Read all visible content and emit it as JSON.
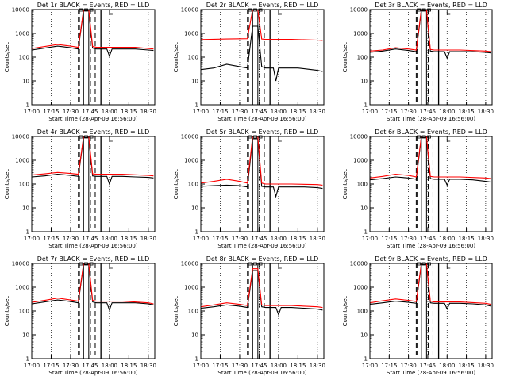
{
  "chart_data": [
    {
      "type": "line",
      "title": "Det 1r BLACK = Events, RED = LLD",
      "xlabel": "Start Time (28-Apr-09 16:56:00)",
      "ylabel": "Counts/sec",
      "ylog": true,
      "ylim": [
        1,
        10000
      ],
      "xlim": [
        "17:00",
        "18:35"
      ],
      "x_ticks": [
        "17:00",
        "17:15",
        "17:30",
        "17:45",
        "18:00",
        "18:15",
        "18:30"
      ],
      "y_ticks": [
        "1",
        "10",
        "100",
        "1000",
        "10000"
      ],
      "series": [
        {
          "color": "#000000",
          "x": [
            "17:00",
            "17:10",
            "17:20",
            "17:30",
            "17:36",
            "17:40",
            "17:44",
            "17:47",
            "17:50",
            "17:58",
            "18:00",
            "18:02",
            "18:10",
            "18:20",
            "18:30",
            "18:34"
          ],
          "values": [
            200,
            240,
            290,
            250,
            220,
            9000,
            9000,
            240,
            220,
            220,
            110,
            220,
            220,
            220,
            200,
            190
          ]
        },
        {
          "color": "#ff0000",
          "x": [
            "17:00",
            "17:10",
            "17:20",
            "17:30",
            "17:36",
            "17:40",
            "17:44",
            "17:47",
            "17:50",
            "18:00",
            "18:10",
            "18:20",
            "18:30",
            "18:34"
          ],
          "values": [
            230,
            280,
            340,
            290,
            260,
            10000,
            10000,
            280,
            260,
            260,
            260,
            260,
            230,
            220
          ]
        }
      ]
    },
    {
      "type": "line",
      "title": "Det 2r BLACK = Events, RED = LLD",
      "xlabel": "Start Time (28-Apr-09 16:56:00)",
      "ylabel": "Counts/sec",
      "ylog": true,
      "ylim": [
        1,
        10000
      ],
      "xlim": [
        "17:00",
        "18:35"
      ],
      "x_ticks": [
        "17:00",
        "17:15",
        "17:30",
        "17:45",
        "18:00",
        "18:15",
        "18:30"
      ],
      "y_ticks": [
        "1",
        "10",
        "100",
        "1000",
        "10000"
      ],
      "series": [
        {
          "color": "#000000",
          "x": [
            "17:00",
            "17:10",
            "17:20",
            "17:30",
            "17:36",
            "17:40",
            "17:44",
            "17:47",
            "17:50",
            "17:56",
            "17:58",
            "18:00",
            "18:05",
            "18:15",
            "18:30",
            "18:34"
          ],
          "values": [
            30,
            35,
            50,
            40,
            35,
            2000,
            2000,
            40,
            35,
            35,
            10,
            35,
            35,
            35,
            28,
            25
          ]
        },
        {
          "color": "#ff0000",
          "x": [
            "17:00",
            "17:20",
            "17:36",
            "17:40",
            "17:44",
            "17:47",
            "17:50",
            "18:10",
            "18:30",
            "18:34"
          ],
          "values": [
            550,
            580,
            600,
            10000,
            10000,
            580,
            560,
            560,
            520,
            500
          ]
        }
      ]
    },
    {
      "type": "line",
      "title": "Det 3r BLACK = Events, RED = LLD",
      "xlabel": "Start Time (28-Apr-09 16:56:00)",
      "ylabel": "Counts/sec",
      "ylog": true,
      "ylim": [
        1,
        10000
      ],
      "xlim": [
        "17:00",
        "18:35"
      ],
      "x_ticks": [
        "17:00",
        "17:15",
        "17:30",
        "17:45",
        "18:00",
        "18:15",
        "18:30"
      ],
      "y_ticks": [
        "1",
        "10",
        "100",
        "1000",
        "10000"
      ],
      "series": [
        {
          "color": "#000000",
          "x": [
            "17:00",
            "17:10",
            "17:20",
            "17:30",
            "17:36",
            "17:40",
            "17:44",
            "17:47",
            "17:50",
            "17:58",
            "18:00",
            "18:02",
            "18:10",
            "18:20",
            "18:30",
            "18:34"
          ],
          "values": [
            160,
            180,
            220,
            190,
            170,
            9000,
            9000,
            180,
            170,
            170,
            90,
            170,
            170,
            170,
            160,
            150
          ]
        },
        {
          "color": "#ff0000",
          "x": [
            "17:00",
            "17:10",
            "17:20",
            "17:30",
            "17:36",
            "17:40",
            "17:44",
            "17:47",
            "17:50",
            "18:10",
            "18:30",
            "18:34"
          ],
          "values": [
            180,
            200,
            250,
            220,
            200,
            10000,
            10000,
            210,
            200,
            200,
            180,
            170
          ]
        }
      ]
    },
    {
      "type": "line",
      "title": "Det 4r BLACK = Events, RED = LLD",
      "xlabel": "Start Time (28-Apr-09 16:56:00)",
      "ylabel": "Counts/sec",
      "ylog": true,
      "ylim": [
        1,
        10000
      ],
      "xlim": [
        "17:00",
        "18:35"
      ],
      "x_ticks": [
        "17:00",
        "17:15",
        "17:30",
        "17:45",
        "18:00",
        "18:15",
        "18:30"
      ],
      "y_ticks": [
        "1",
        "10",
        "100",
        "1000",
        "10000"
      ],
      "series": [
        {
          "color": "#000000",
          "x": [
            "17:00",
            "17:10",
            "17:20",
            "17:30",
            "17:36",
            "17:40",
            "17:44",
            "17:47",
            "17:50",
            "17:58",
            "18:00",
            "18:02",
            "18:10",
            "18:20",
            "18:30",
            "18:34"
          ],
          "values": [
            200,
            220,
            260,
            230,
            210,
            9000,
            9000,
            220,
            210,
            210,
            100,
            210,
            210,
            200,
            190,
            180
          ]
        },
        {
          "color": "#ff0000",
          "x": [
            "17:00",
            "17:10",
            "17:20",
            "17:30",
            "17:36",
            "17:40",
            "17:44",
            "17:47",
            "17:50",
            "18:10",
            "18:30",
            "18:34"
          ],
          "values": [
            240,
            270,
            310,
            280,
            260,
            10000,
            10000,
            270,
            260,
            260,
            230,
            220
          ]
        }
      ]
    },
    {
      "type": "line",
      "title": "Det 5r BLACK = Events, RED = LLD",
      "xlabel": "Start Time (28-Apr-09 16:56:00)",
      "ylabel": "Counts/sec",
      "ylog": true,
      "ylim": [
        1,
        10000
      ],
      "xlim": [
        "17:00",
        "18:35"
      ],
      "x_ticks": [
        "17:00",
        "17:15",
        "17:30",
        "17:45",
        "18:00",
        "18:15",
        "18:30"
      ],
      "y_ticks": [
        "1",
        "10",
        "100",
        "1000",
        "10000"
      ],
      "series": [
        {
          "color": "#000000",
          "x": [
            "17:00",
            "17:10",
            "17:20",
            "17:30",
            "17:36",
            "17:40",
            "17:44",
            "17:47",
            "17:50",
            "17:56",
            "17:58",
            "18:00",
            "18:10",
            "18:20",
            "18:30",
            "18:34"
          ],
          "values": [
            80,
            85,
            90,
            85,
            75,
            8000,
            8000,
            80,
            75,
            75,
            30,
            75,
            75,
            75,
            70,
            65
          ]
        },
        {
          "color": "#ff0000",
          "x": [
            "17:00",
            "17:10",
            "17:20",
            "17:30",
            "17:36",
            "17:40",
            "17:44",
            "17:47",
            "17:50",
            "18:10",
            "18:30",
            "18:34"
          ],
          "values": [
            110,
            130,
            160,
            130,
            110,
            10000,
            10000,
            110,
            100,
            100,
            95,
            90
          ]
        }
      ]
    },
    {
      "type": "line",
      "title": "Det 6r BLACK = Events, RED = LLD",
      "xlabel": "Start Time (28-Apr-09 16:56:00)",
      "ylabel": "Counts/sec",
      "ylog": true,
      "ylim": [
        1,
        10000
      ],
      "xlim": [
        "17:00",
        "18:35"
      ],
      "x_ticks": [
        "17:00",
        "17:15",
        "17:30",
        "17:45",
        "18:00",
        "18:15",
        "18:30"
      ],
      "y_ticks": [
        "1",
        "10",
        "100",
        "1000",
        "10000"
      ],
      "series": [
        {
          "color": "#000000",
          "x": [
            "17:00",
            "17:10",
            "17:20",
            "17:30",
            "17:36",
            "17:40",
            "17:44",
            "17:47",
            "17:50",
            "17:58",
            "18:00",
            "18:02",
            "18:10",
            "18:20",
            "18:30",
            "18:34"
          ],
          "values": [
            150,
            170,
            200,
            180,
            160,
            9000,
            9000,
            170,
            160,
            160,
            90,
            160,
            160,
            150,
            130,
            120
          ]
        },
        {
          "color": "#ff0000",
          "x": [
            "17:00",
            "17:10",
            "17:20",
            "17:30",
            "17:36",
            "17:40",
            "17:44",
            "17:47",
            "17:50",
            "18:10",
            "18:30",
            "18:34"
          ],
          "values": [
            180,
            210,
            260,
            230,
            200,
            10000,
            10000,
            210,
            200,
            200,
            180,
            170
          ]
        }
      ]
    },
    {
      "type": "line",
      "title": "Det 7r BLACK = Events, RED = LLD",
      "xlabel": "Start Time (28-Apr-09 16:56:00)",
      "ylabel": "Counts/sec",
      "ylog": true,
      "ylim": [
        1,
        10000
      ],
      "xlim": [
        "17:00",
        "18:35"
      ],
      "x_ticks": [
        "17:00",
        "17:15",
        "17:30",
        "17:45",
        "18:00",
        "18:15",
        "18:30"
      ],
      "y_ticks": [
        "1",
        "10",
        "100",
        "1000",
        "10000"
      ],
      "series": [
        {
          "color": "#000000",
          "x": [
            "17:00",
            "17:10",
            "17:20",
            "17:30",
            "17:36",
            "17:40",
            "17:44",
            "17:47",
            "17:50",
            "17:58",
            "18:00",
            "18:02",
            "18:10",
            "18:20",
            "18:30",
            "18:34"
          ],
          "values": [
            200,
            240,
            290,
            250,
            220,
            9000,
            9000,
            240,
            220,
            220,
            110,
            220,
            220,
            220,
            200,
            180
          ]
        },
        {
          "color": "#ff0000",
          "x": [
            "17:00",
            "17:10",
            "17:20",
            "17:30",
            "17:36",
            "17:40",
            "17:44",
            "17:47",
            "17:50",
            "18:10",
            "18:30",
            "18:34"
          ],
          "values": [
            230,
            280,
            350,
            290,
            260,
            10000,
            10000,
            280,
            260,
            260,
            220,
            200
          ]
        }
      ]
    },
    {
      "type": "line",
      "title": "Det 8r BLACK = Events, RED = LLD",
      "xlabel": "Start Time (28-Apr-09 16:56:00)",
      "ylabel": "Counts/sec",
      "ylog": true,
      "ylim": [
        1,
        10000
      ],
      "xlim": [
        "17:00",
        "18:35"
      ],
      "x_ticks": [
        "17:00",
        "17:15",
        "17:30",
        "17:45",
        "18:00",
        "18:15",
        "18:30"
      ],
      "y_ticks": [
        "1",
        "10",
        "100",
        "1000",
        "10000"
      ],
      "series": [
        {
          "color": "#000000",
          "x": [
            "17:00",
            "17:10",
            "17:20",
            "17:30",
            "17:36",
            "17:40",
            "17:44",
            "17:47",
            "17:50",
            "17:58",
            "18:00",
            "18:02",
            "18:10",
            "18:20",
            "18:30",
            "18:34"
          ],
          "values": [
            130,
            150,
            180,
            160,
            140,
            5000,
            5000,
            150,
            140,
            140,
            70,
            140,
            140,
            130,
            120,
            110
          ]
        },
        {
          "color": "#ff0000",
          "x": [
            "17:00",
            "17:10",
            "17:20",
            "17:30",
            "17:36",
            "17:40",
            "17:44",
            "17:47",
            "17:50",
            "18:10",
            "18:30",
            "18:34"
          ],
          "values": [
            150,
            180,
            220,
            190,
            170,
            6000,
            6000,
            180,
            170,
            170,
            150,
            140
          ]
        }
      ]
    },
    {
      "type": "line",
      "title": "Det 9r BLACK = Events, RED = LLD",
      "xlabel": "Start Time (28-Apr-09 16:56:00)",
      "ylabel": "Counts/sec",
      "ylog": true,
      "ylim": [
        1,
        10000
      ],
      "xlim": [
        "17:00",
        "18:35"
      ],
      "x_ticks": [
        "17:00",
        "17:15",
        "17:30",
        "17:45",
        "18:00",
        "18:15",
        "18:30"
      ],
      "y_ticks": [
        "1",
        "10",
        "100",
        "1000",
        "10000"
      ],
      "series": [
        {
          "color": "#000000",
          "x": [
            "17:00",
            "17:10",
            "17:20",
            "17:30",
            "17:36",
            "17:40",
            "17:44",
            "17:47",
            "17:50",
            "17:58",
            "18:00",
            "18:02",
            "18:10",
            "18:20",
            "18:30",
            "18:34"
          ],
          "values": [
            190,
            220,
            260,
            230,
            210,
            9000,
            9000,
            220,
            210,
            210,
            120,
            210,
            210,
            200,
            180,
            160
          ]
        },
        {
          "color": "#ff0000",
          "x": [
            "17:00",
            "17:10",
            "17:20",
            "17:30",
            "17:36",
            "17:40",
            "17:44",
            "17:47",
            "17:50",
            "18:10",
            "18:30",
            "18:34"
          ],
          "values": [
            220,
            270,
            320,
            280,
            250,
            10000,
            10000,
            260,
            240,
            240,
            210,
            190
          ]
        }
      ]
    }
  ]
}
